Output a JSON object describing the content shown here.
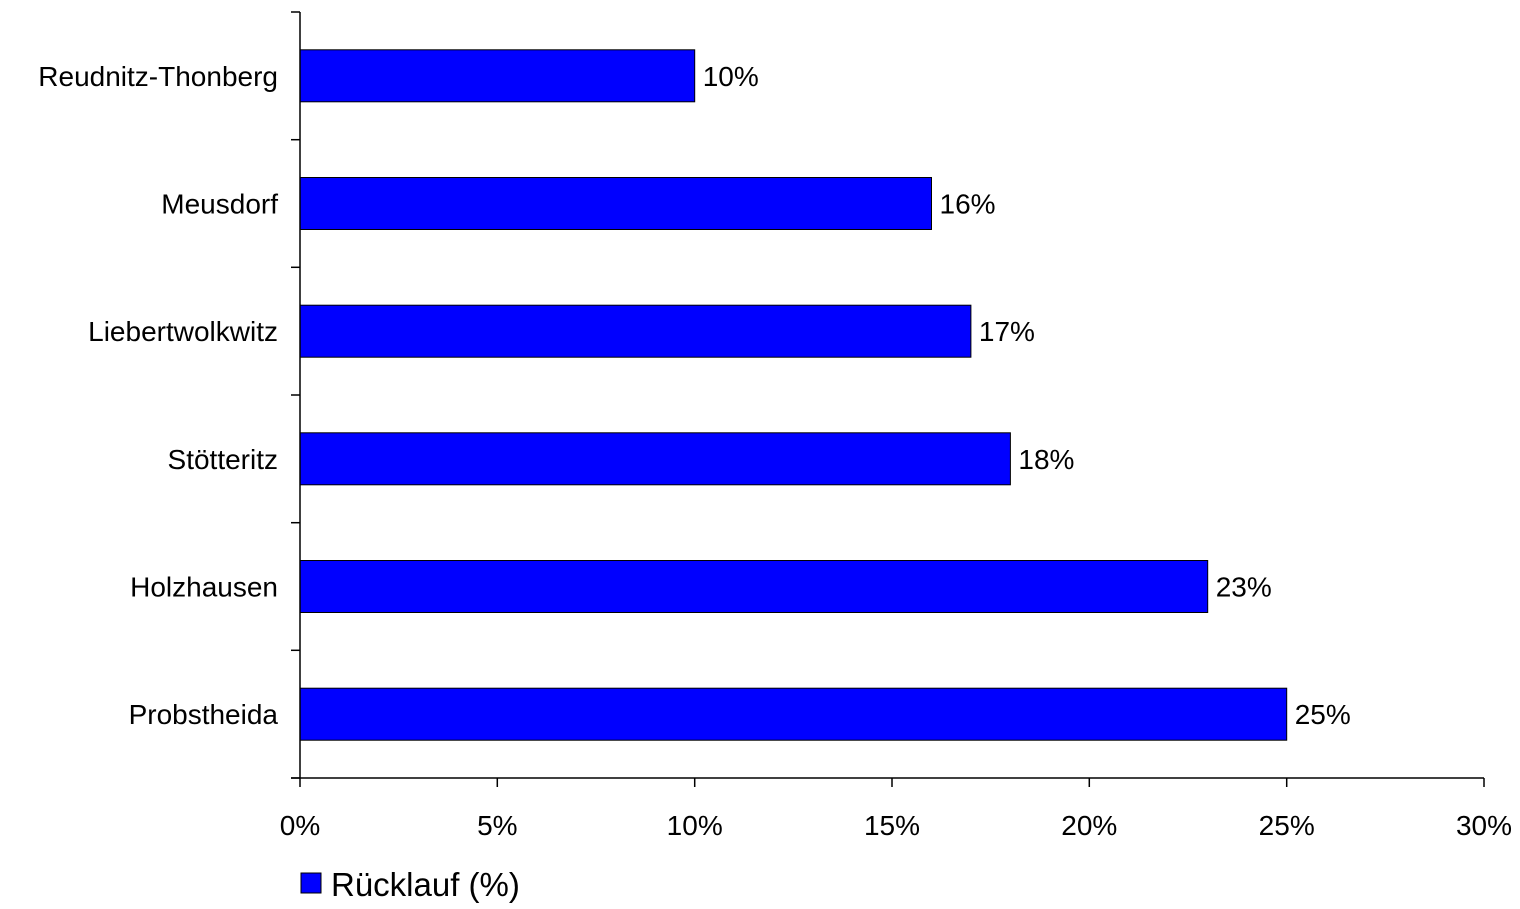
{
  "chart_data": {
    "type": "bar",
    "orientation": "horizontal",
    "categories": [
      "Reudnitz-Thonberg",
      "Meusdorf",
      "Liebertwolkwitz",
      "Stötteritz",
      "Holzhausen",
      "Probstheida"
    ],
    "series": [
      {
        "name": "Rücklauf (%)",
        "values": [
          10,
          16,
          17,
          18,
          23,
          25
        ],
        "data_labels": [
          "10%",
          "16%",
          "17%",
          "18%",
          "23%",
          "25%"
        ],
        "color": "#0000FF"
      }
    ],
    "x_ticks": [
      0,
      5,
      10,
      15,
      20,
      25,
      30
    ],
    "x_tick_labels": [
      "0%",
      "5%",
      "10%",
      "15%",
      "20%",
      "25%",
      "30%"
    ],
    "xlim": [
      0,
      30
    ],
    "title": "",
    "xlabel": "",
    "ylabel": "",
    "grid": false,
    "legend_placement": "bottom-left"
  }
}
